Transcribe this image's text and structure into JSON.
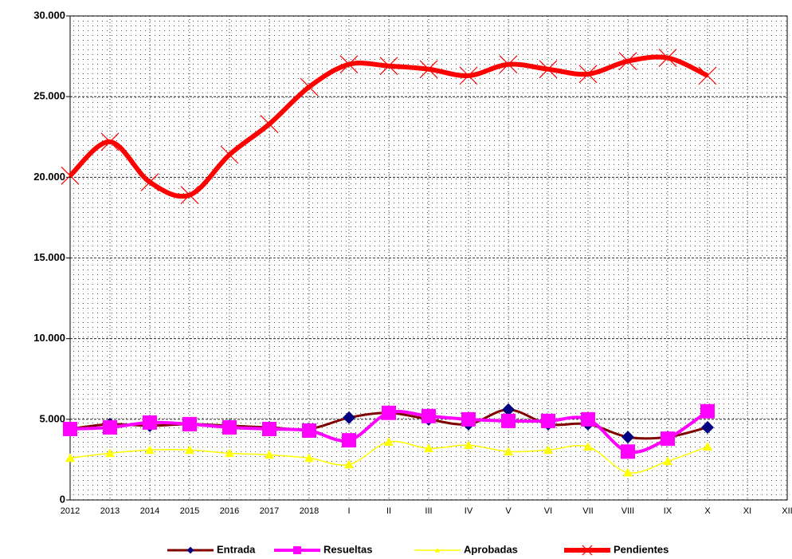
{
  "chart_data": {
    "type": "line",
    "categories": [
      "2012",
      "2013",
      "2014",
      "2015",
      "2016",
      "2017",
      "2018",
      "I",
      "II",
      "III",
      "IV",
      "V",
      "VI",
      "VII",
      "VIII",
      "IX",
      "X",
      "XI",
      "XII"
    ],
    "series": [
      {
        "name": "Entrada",
        "color": "#800000",
        "marker_color": "#000080",
        "marker": "diamond",
        "values": [
          4400,
          4700,
          4600,
          4700,
          4600,
          4500,
          4400,
          5100,
          5400,
          5000,
          4700,
          5600,
          4700,
          4700,
          3900,
          3900,
          4500,
          null,
          null
        ]
      },
      {
        "name": "Resueltas",
        "color": "#ff00ff",
        "marker_color": "#ff00ff",
        "marker": "square",
        "values": [
          4400,
          4500,
          4800,
          4700,
          4500,
          4400,
          4300,
          3700,
          5400,
          5200,
          5000,
          4900,
          4900,
          5000,
          3000,
          3800,
          5500,
          null,
          null
        ]
      },
      {
        "name": "Aprobadas",
        "color": "#ffff00",
        "marker_color": "#ffff00",
        "marker": "triangle",
        "values": [
          2600,
          2900,
          3100,
          3100,
          2900,
          2800,
          2600,
          2200,
          3600,
          3200,
          3400,
          3000,
          3100,
          3300,
          1700,
          2400,
          3300,
          null,
          null
        ]
      },
      {
        "name": "Pendientes",
        "color": "#ff0000",
        "marker_color": "#ff0000",
        "marker": "x",
        "values": [
          20100,
          22200,
          19700,
          18900,
          21400,
          23300,
          25600,
          27000,
          26900,
          26700,
          26300,
          27000,
          26700,
          26400,
          27200,
          27400,
          26300,
          null,
          null
        ]
      }
    ],
    "ylim": [
      0,
      30000
    ],
    "yticks": [
      {
        "value": 0,
        "label": "0"
      },
      {
        "value": 5000,
        "label": "5.000"
      },
      {
        "value": 10000,
        "label": "10.000"
      },
      {
        "value": 15000,
        "label": "15.000"
      },
      {
        "value": 20000,
        "label": "20.000"
      },
      {
        "value": 25000,
        "label": "25.000"
      },
      {
        "value": 30000,
        "label": "30.000"
      }
    ],
    "grid": true,
    "legend": "bottom",
    "smooth": true
  }
}
